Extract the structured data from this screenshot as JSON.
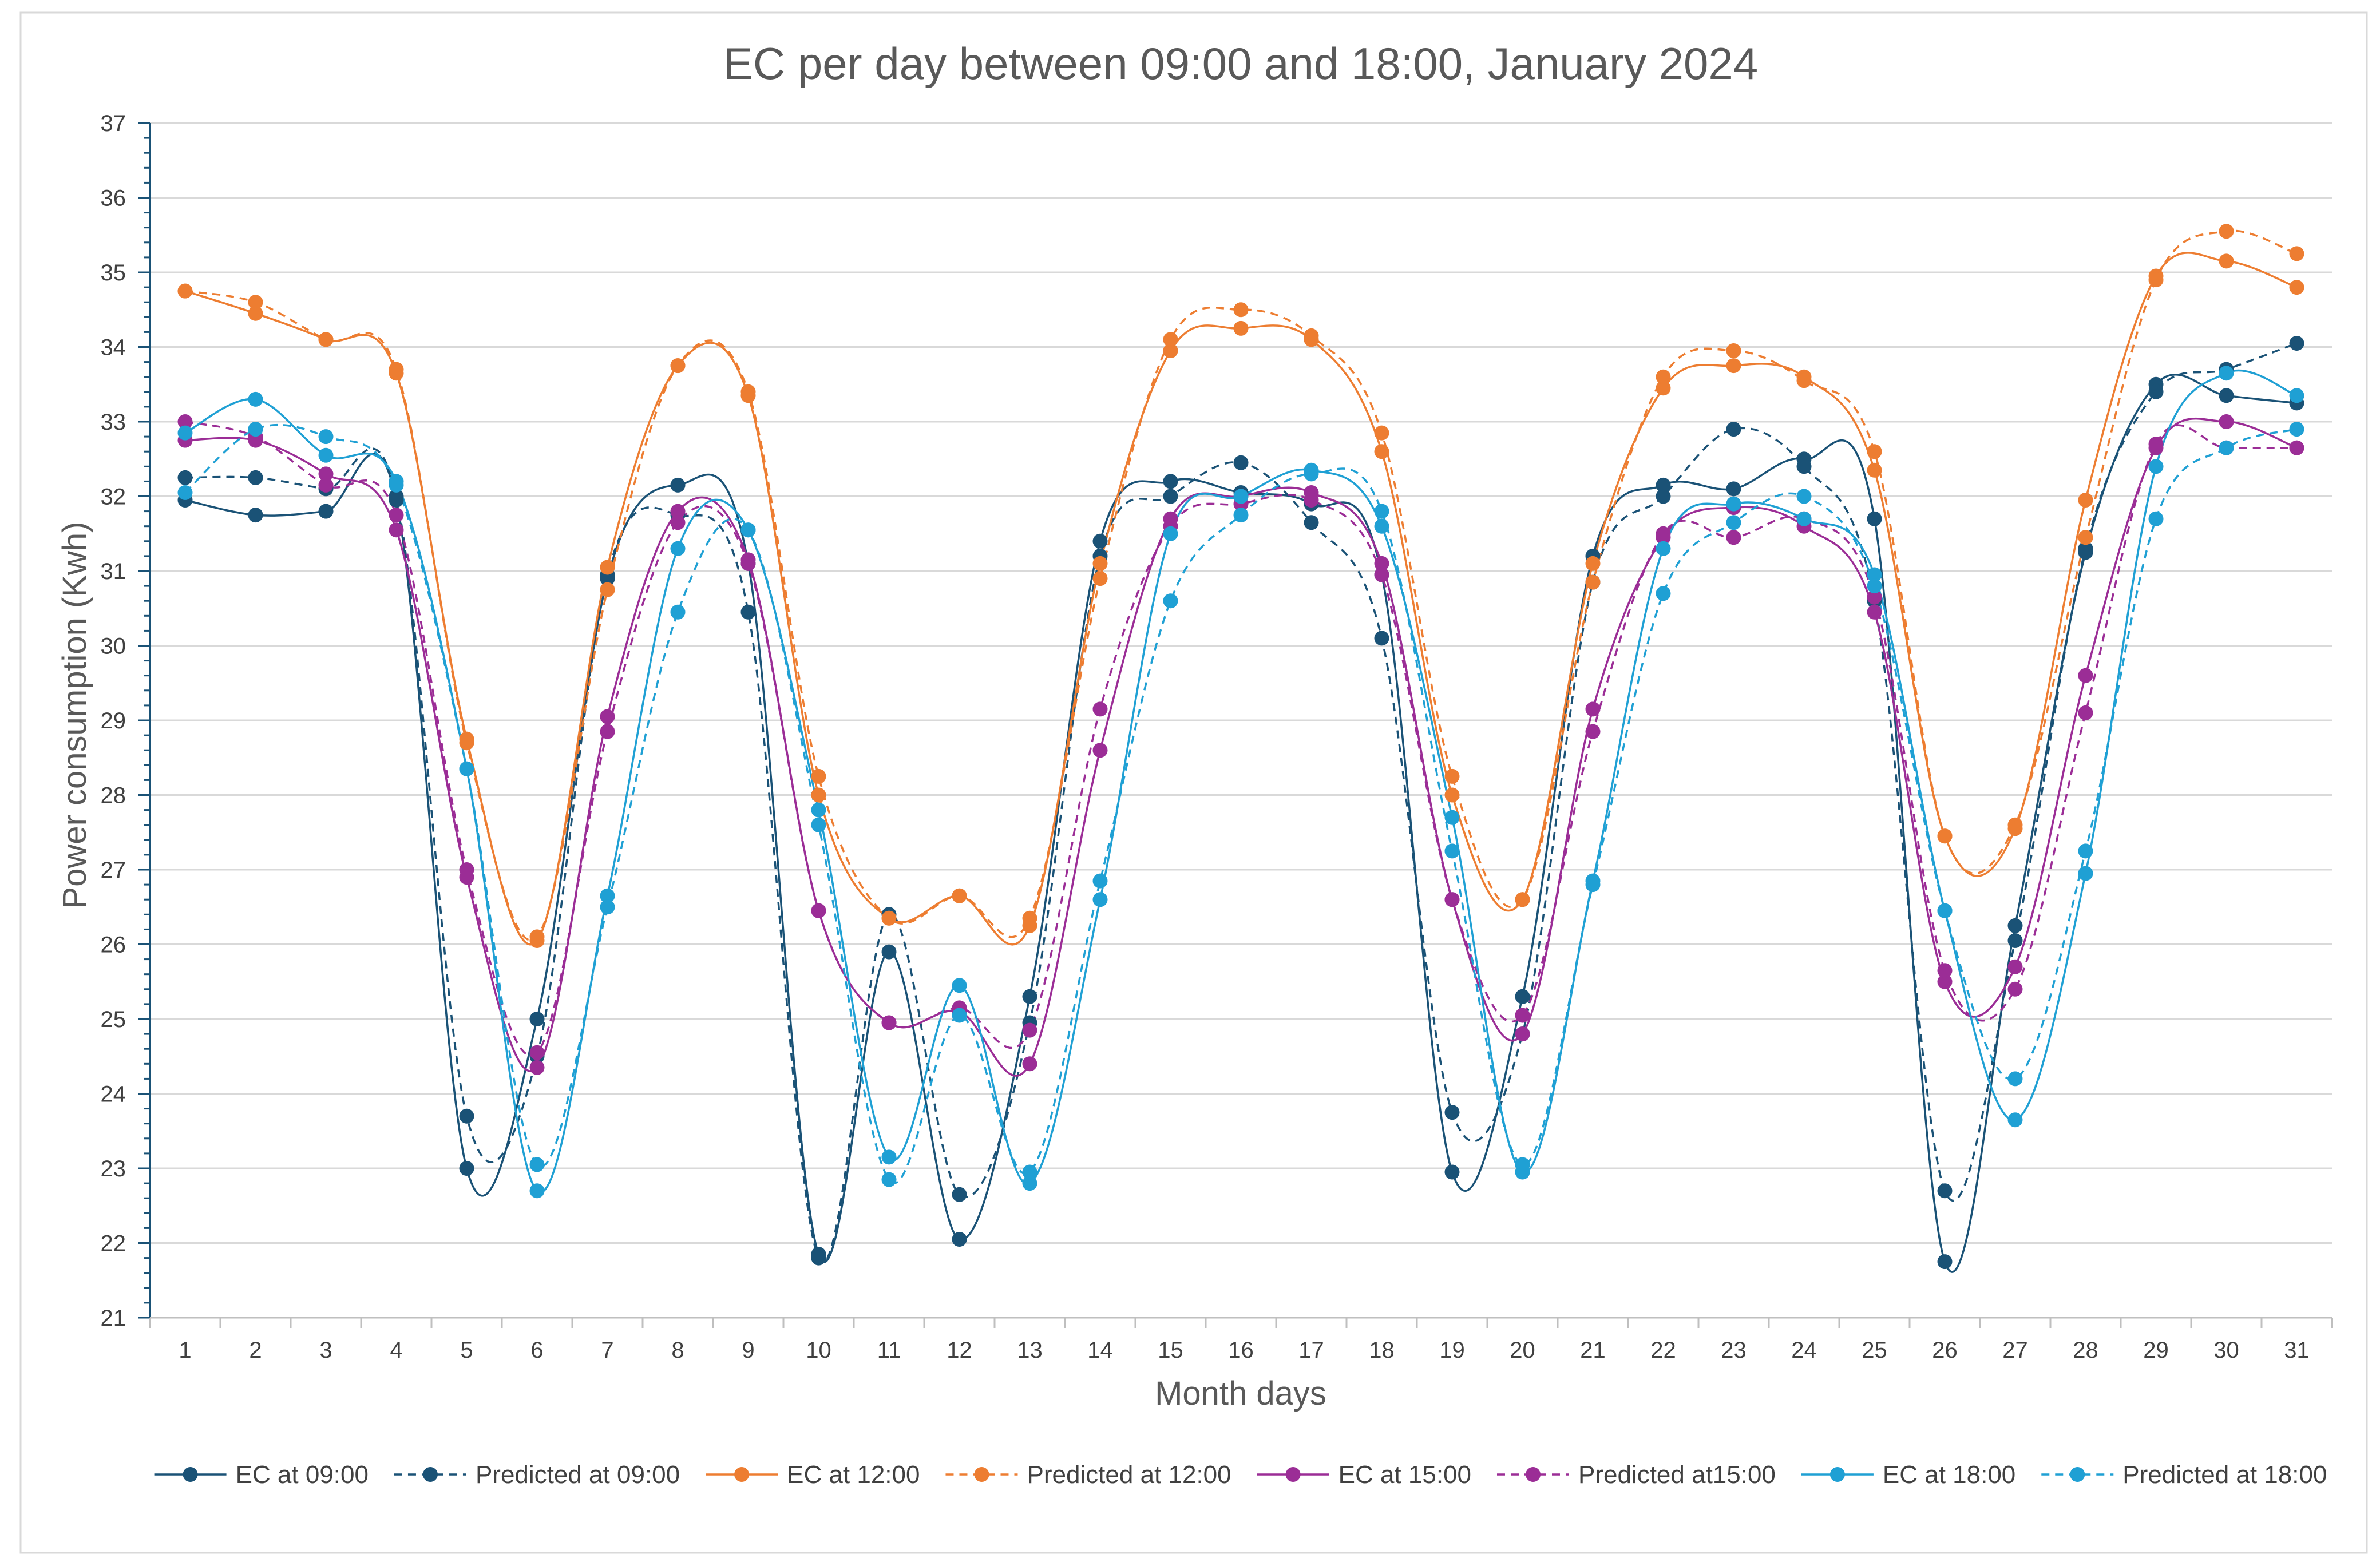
{
  "chart_data": {
    "type": "line",
    "title": "EC per day between 09:00 and 18:00, January 2024",
    "xlabel": "Month days",
    "ylabel": "Power consumption (Kwh)",
    "ylim": [
      21,
      37
    ],
    "yticks": [
      "21",
      "22",
      "23",
      "24",
      "25",
      "26",
      "27",
      "28",
      "29",
      "30",
      "31",
      "32",
      "33",
      "34",
      "35",
      "36",
      "37"
    ],
    "categories": [
      "1",
      "2",
      "3",
      "4",
      "5",
      "6",
      "7",
      "8",
      "9",
      "10",
      "11",
      "12",
      "13",
      "14",
      "15",
      "16",
      "17",
      "18",
      "19",
      "20",
      "21",
      "22",
      "23",
      "24",
      "25",
      "26",
      "27",
      "28",
      "29",
      "30",
      "31"
    ],
    "grid": true,
    "legend": "bottom",
    "series": [
      {
        "name": "EC at 09:00",
        "color": "#1a5276",
        "dashed": false,
        "values": [
          31.95,
          31.75,
          31.8,
          31.95,
          23.0,
          25.0,
          30.9,
          32.15,
          31.1,
          21.85,
          25.9,
          22.05,
          25.3,
          31.4,
          32.2,
          32.05,
          31.9,
          30.95,
          22.95,
          25.3,
          31.2,
          32.15,
          32.1,
          32.5,
          31.7,
          21.75,
          26.25,
          31.25,
          33.5,
          33.35,
          33.25
        ]
      },
      {
        "name": "Predicted at 09:00",
        "color": "#1a5276",
        "dashed": true,
        "values": [
          32.25,
          32.25,
          32.1,
          32.0,
          23.7,
          24.5,
          30.95,
          31.75,
          30.45,
          21.8,
          26.4,
          22.65,
          24.95,
          31.2,
          32.0,
          32.45,
          31.65,
          30.1,
          23.75,
          24.8,
          30.85,
          32.0,
          32.9,
          32.4,
          30.6,
          22.7,
          26.05,
          31.3,
          33.4,
          33.7,
          34.05
        ]
      },
      {
        "name": "EC at 12:00",
        "color": "#ed7d31",
        "dashed": false,
        "values": [
          34.75,
          34.45,
          34.1,
          33.65,
          28.75,
          26.05,
          31.05,
          33.75,
          33.35,
          28.0,
          26.35,
          26.65,
          26.25,
          31.1,
          33.95,
          34.25,
          34.1,
          32.6,
          28.0,
          26.6,
          31.1,
          33.45,
          33.75,
          33.6,
          32.35,
          27.45,
          27.55,
          31.95,
          34.95,
          35.15,
          34.8
        ]
      },
      {
        "name": "Predicted at 12:00",
        "color": "#ed7d31",
        "dashed": true,
        "values": [
          34.75,
          34.6,
          34.1,
          33.7,
          28.7,
          26.1,
          30.75,
          33.75,
          33.4,
          28.25,
          26.35,
          26.65,
          26.35,
          30.9,
          34.1,
          34.5,
          34.15,
          32.85,
          28.25,
          26.6,
          30.85,
          33.6,
          33.95,
          33.55,
          32.6,
          27.45,
          27.6,
          31.45,
          34.9,
          35.55,
          35.25
        ]
      },
      {
        "name": "EC at 15:00",
        "color": "#9b2d96",
        "dashed": false,
        "values": [
          32.75,
          32.75,
          32.3,
          31.55,
          26.9,
          24.35,
          29.05,
          31.8,
          31.15,
          26.45,
          24.95,
          25.1,
          24.4,
          28.6,
          31.7,
          32.0,
          32.05,
          31.1,
          26.6,
          24.8,
          29.15,
          31.45,
          31.85,
          31.6,
          30.45,
          25.5,
          25.7,
          29.6,
          32.65,
          33.0,
          32.65
        ]
      },
      {
        "name": "Predicted at15:00",
        "color": "#9b2d96",
        "dashed": true,
        "values": [
          33.0,
          32.8,
          32.15,
          31.75,
          27.0,
          24.55,
          28.85,
          31.65,
          31.1,
          26.45,
          24.95,
          25.15,
          24.85,
          29.15,
          31.6,
          31.9,
          31.95,
          30.95,
          26.6,
          25.05,
          28.85,
          31.5,
          31.45,
          31.7,
          30.65,
          25.65,
          25.4,
          29.1,
          32.7,
          32.65,
          32.65
        ]
      },
      {
        "name": "EC at 18:00",
        "color": "#1fa0d4",
        "dashed": false,
        "values": [
          32.85,
          33.3,
          32.55,
          32.2,
          28.35,
          22.7,
          26.65,
          31.3,
          31.55,
          27.8,
          23.15,
          25.45,
          22.8,
          26.6,
          31.5,
          32.0,
          32.35,
          31.6,
          27.7,
          22.95,
          26.85,
          31.3,
          31.9,
          31.7,
          30.95,
          26.45,
          23.65,
          26.95,
          32.4,
          33.65,
          33.35
        ]
      },
      {
        "name": "Predicted at 18:00",
        "color": "#1fa0d4",
        "dashed": true,
        "values": [
          32.05,
          32.9,
          32.8,
          32.15,
          28.35,
          23.05,
          26.5,
          30.45,
          31.55,
          27.6,
          22.85,
          25.05,
          22.95,
          26.85,
          30.6,
          31.75,
          32.3,
          31.8,
          27.25,
          23.05,
          26.8,
          30.7,
          31.65,
          32.0,
          30.8,
          26.45,
          24.2,
          27.25,
          31.7,
          32.65,
          32.9
        ]
      }
    ]
  }
}
